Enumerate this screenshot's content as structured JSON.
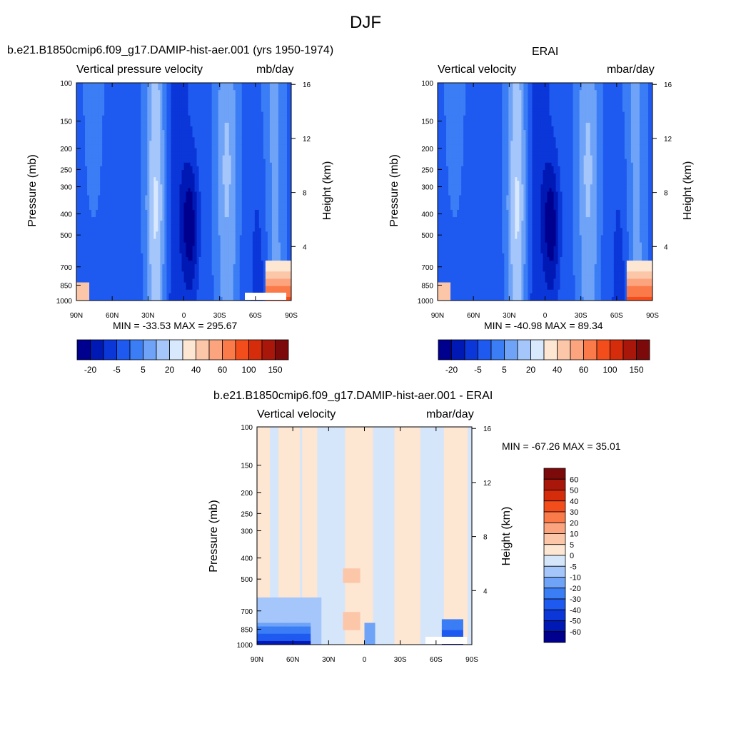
{
  "figure": {
    "title": "DJF"
  },
  "colors": {
    "blue_ramp": [
      "#00008e",
      "#0018b4",
      "#0b37d9",
      "#1f5af0",
      "#3a7df5",
      "#6fa3f7",
      "#a4c6fb",
      "#d8e8fd"
    ],
    "red_ramp": [
      "#fde6d2",
      "#fcc6a9",
      "#fca47e",
      "#fb7a4a",
      "#f44d1c",
      "#d52c0b",
      "#a8170a",
      "#7d0a0a"
    ]
  },
  "chart_data": [
    {
      "type": "heatmap",
      "title": "b.e21.B1850cmip6.f09_g17.DAMIP-hist-aer.001 (yrs 1950-1974)",
      "left_label": "Vertical pressure velocity",
      "right_label": "mb/day",
      "xlabel": "",
      "ylabel": "Pressure (mb)",
      "y2label": "Height (km)",
      "x_ticks": [
        "90N",
        "60N",
        "30N",
        "0",
        "30S",
        "60S",
        "90S"
      ],
      "y_ticks": [
        "100",
        "150",
        "200",
        "250",
        "300",
        "400",
        "500",
        "700",
        "850",
        "1000"
      ],
      "y2_ticks": [
        "16",
        "12",
        "8",
        "4"
      ],
      "stats": "MIN = -33.53  MAX = 295.67",
      "colorbar_labels": [
        "-20",
        "-5",
        "5",
        "20",
        "40",
        "60",
        "100",
        "150"
      ],
      "ylim": [
        1000,
        100
      ],
      "log_scale_y": true
    },
    {
      "type": "heatmap",
      "title": "ERAI",
      "left_label": "Vertical velocity",
      "right_label": "mbar/day",
      "xlabel": "",
      "ylabel": "Pressure (mb)",
      "y2label": "Height (km)",
      "x_ticks": [
        "90N",
        "60N",
        "30N",
        "0",
        "30S",
        "60S",
        "90S"
      ],
      "y_ticks": [
        "100",
        "150",
        "200",
        "250",
        "300",
        "400",
        "500",
        "700",
        "850",
        "1000"
      ],
      "y2_ticks": [
        "16",
        "12",
        "8",
        "4"
      ],
      "stats": "MIN = -40.98  MAX =  89.34",
      "colorbar_labels": [
        "-20",
        "-5",
        "5",
        "20",
        "40",
        "60",
        "100",
        "150"
      ],
      "ylim": [
        1000,
        100
      ],
      "log_scale_y": true
    },
    {
      "type": "heatmap",
      "title": "b.e21.B1850cmip6.f09_g17.DAMIP-hist-aer.001 - ERAI",
      "left_label": "Vertical velocity",
      "right_label": "mbar/day",
      "xlabel": "",
      "ylabel": "Pressure (mb)",
      "y2label": "Height (km)",
      "x_ticks": [
        "90N",
        "60N",
        "30N",
        "0",
        "30S",
        "60S",
        "90S"
      ],
      "y_ticks": [
        "100",
        "150",
        "200",
        "250",
        "300",
        "400",
        "500",
        "700",
        "850",
        "1000"
      ],
      "y2_ticks": [
        "16",
        "12",
        "8",
        "4"
      ],
      "stats": "MIN = -67.26  MAX =  35.01",
      "colorbar_labels": [
        "60",
        "50",
        "40",
        "30",
        "20",
        "10",
        "5",
        "0",
        "-5",
        "-10",
        "-20",
        "-30",
        "-40",
        "-50",
        "-60"
      ],
      "ylim": [
        1000,
        100
      ],
      "log_scale_y": true
    }
  ]
}
